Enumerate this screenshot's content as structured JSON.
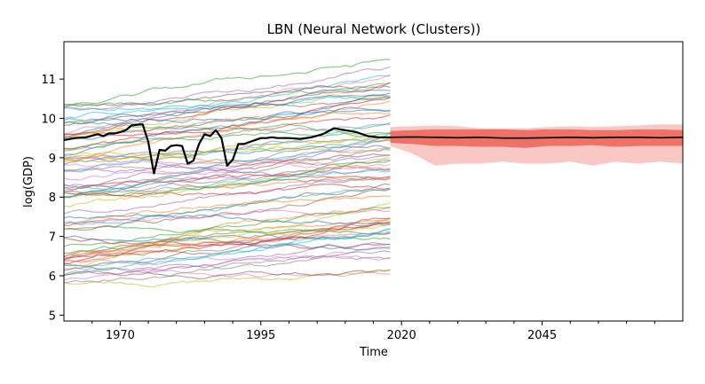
{
  "chart_data": {
    "type": "line",
    "title": "LBN (Neural Network (Clusters))",
    "xlabel": "Time",
    "ylabel": "log(GDP)",
    "xlim": [
      1960,
      2070
    ],
    "ylim": [
      4.85,
      11.95
    ],
    "x_ticks": [
      1970,
      1995,
      2020,
      2045
    ],
    "y_ticks": [
      5,
      6,
      7,
      8,
      9,
      10,
      11
    ],
    "grid": false,
    "legend": "none",
    "history_years": [
      1960,
      2018
    ],
    "background_series_count": 80,
    "background_colors": [
      "#1f77b4",
      "#ff7f0e",
      "#2ca02c",
      "#d62728",
      "#9467bd",
      "#8c564b",
      "#e377c2",
      "#7f7f7f",
      "#bcbd22",
      "#17becf"
    ],
    "highlight_color": "#000000",
    "forecast_color": "#e8392a",
    "highlight_series": {
      "name": "LBN",
      "x": [
        1960,
        1962,
        1964,
        1966,
        1967,
        1968,
        1969,
        1970,
        1971,
        1972,
        1973,
        1974,
        1975,
        1976,
        1977,
        1978,
        1979,
        1980,
        1981,
        1982,
        1983,
        1984,
        1985,
        1986,
        1987,
        1988,
        1989,
        1990,
        1991,
        1992,
        1993,
        1994,
        1995,
        1996,
        1997,
        1998,
        2000,
        2002,
        2004,
        2006,
        2008,
        2010,
        2012,
        2014,
        2016,
        2018
      ],
      "values": [
        9.45,
        9.5,
        9.52,
        9.6,
        9.55,
        9.62,
        9.62,
        9.65,
        9.7,
        9.82,
        9.84,
        9.85,
        9.4,
        8.6,
        9.2,
        9.18,
        9.3,
        9.32,
        9.3,
        8.85,
        8.92,
        9.35,
        9.6,
        9.55,
        9.7,
        9.5,
        8.8,
        8.95,
        9.35,
        9.35,
        9.4,
        9.45,
        9.5,
        9.5,
        9.52,
        9.5,
        9.5,
        9.48,
        9.52,
        9.6,
        9.75,
        9.7,
        9.65,
        9.55,
        9.52,
        9.52
      ]
    },
    "forecast": {
      "x": [
        2018,
        2022,
        2026,
        2030,
        2034,
        2038,
        2042,
        2046,
        2050,
        2054,
        2058,
        2062,
        2066,
        2070
      ],
      "median": [
        9.52,
        9.53,
        9.52,
        9.51,
        9.52,
        9.5,
        9.5,
        9.51,
        9.52,
        9.51,
        9.52,
        9.52,
        9.51,
        9.52
      ],
      "inner_low": [
        9.38,
        9.35,
        9.3,
        9.3,
        9.28,
        9.28,
        9.25,
        9.3,
        9.3,
        9.32,
        9.28,
        9.3,
        9.3,
        9.3
      ],
      "inner_high": [
        9.68,
        9.7,
        9.72,
        9.72,
        9.72,
        9.72,
        9.7,
        9.72,
        9.72,
        9.7,
        9.7,
        9.72,
        9.72,
        9.7
      ],
      "outer_low": [
        9.3,
        9.1,
        8.8,
        8.85,
        8.85,
        8.9,
        8.85,
        8.85,
        8.9,
        8.8,
        8.9,
        8.85,
        8.9,
        8.85
      ],
      "outer_high": [
        9.78,
        9.8,
        9.82,
        9.8,
        9.75,
        9.75,
        9.75,
        9.78,
        9.8,
        9.78,
        9.8,
        9.82,
        9.85,
        9.85
      ]
    }
  }
}
